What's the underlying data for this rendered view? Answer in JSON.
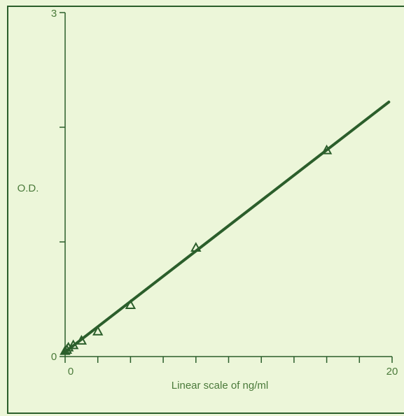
{
  "chart_data": {
    "type": "line",
    "title": "",
    "xlabel": "Linear scale of ng/ml",
    "ylabel": "O.D.",
    "xlim": [
      0,
      20
    ],
    "ylim": [
      0,
      3
    ],
    "x_tick_labels": [
      "0",
      "20"
    ],
    "y_tick_labels": [
      "0",
      "3"
    ],
    "grid": false,
    "series": [
      {
        "marker": "triangle",
        "x": [
          0,
          0.1,
          0.2,
          0.5,
          1,
          2,
          4,
          8,
          16
        ],
        "y": [
          0.05,
          0.06,
          0.08,
          0.1,
          0.14,
          0.22,
          0.45,
          0.95,
          1.8
        ]
      }
    ],
    "fit_line": {
      "x": [
        0,
        19.8
      ],
      "y": [
        0.04,
        2.22
      ]
    },
    "colors": {
      "line": "#2b5e2b",
      "text": "#4a7a3a",
      "background": "#ecf6d9"
    }
  }
}
